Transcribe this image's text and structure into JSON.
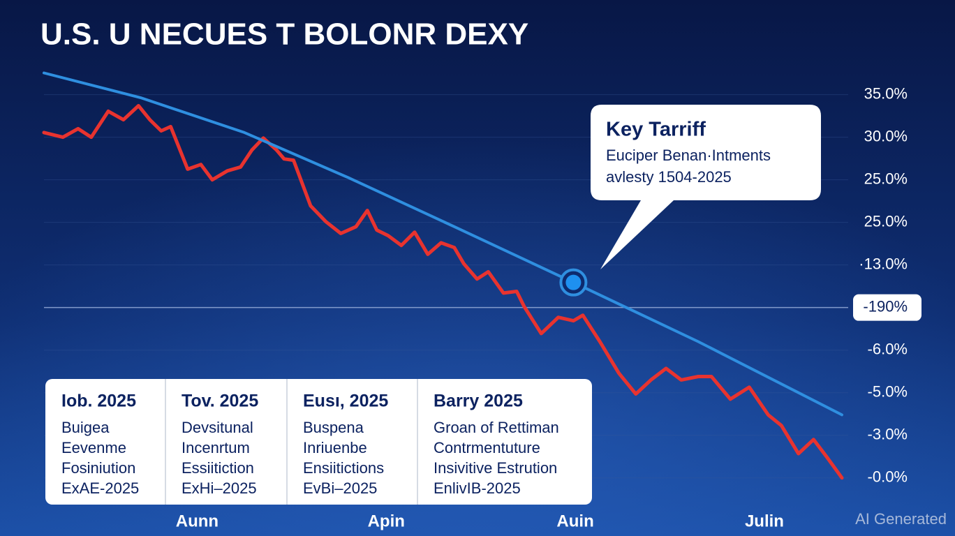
{
  "chart_data": {
    "type": "line",
    "title": "U.S. U NECUES T BOLONR DEXY",
    "xlim": [
      0.19,
      4.41
    ],
    "xticks": [
      {
        "value": 1,
        "label": "Aunn"
      },
      {
        "value": 2,
        "label": "Apin"
      },
      {
        "value": 3,
        "label": "Auin"
      },
      {
        "value": 4,
        "label": "Julin"
      }
    ],
    "ylim": [
      -0.25,
      9.6
    ],
    "yticks": [
      9,
      8,
      7,
      6,
      5,
      4,
      3,
      2,
      1,
      0
    ],
    "ytick_labels": [
      "35.0%",
      "30.0%",
      "25.0%",
      "25.0%",
      "·13.0%",
      "-190%",
      "-6.0%",
      "-5.0%",
      "-3.0%",
      "-0.0%"
    ],
    "highlighted_ytick": 5,
    "grid": true,
    "series": [
      {
        "color": "#e8332f",
        "x": [
          0.19,
          0.29,
          0.37,
          0.44,
          0.53,
          0.61,
          0.69,
          0.75,
          0.81,
          0.86,
          0.95,
          1.02,
          1.08,
          1.16,
          1.23,
          1.29,
          1.35,
          1.42,
          1.46,
          1.51,
          1.6,
          1.68,
          1.76,
          1.84,
          1.9,
          1.95,
          2.01,
          2.08,
          2.15,
          2.22,
          2.29,
          2.36,
          2.41,
          2.48,
          2.54,
          2.62,
          2.69,
          2.73,
          2.82,
          2.91,
          2.99,
          3.04,
          3.13,
          3.23,
          3.32,
          3.4,
          3.48,
          3.56,
          3.65,
          3.72,
          3.82,
          3.92,
          4.02,
          4.09,
          4.18,
          4.26,
          4.33,
          4.41
        ],
        "values": [
          8.11,
          8.0,
          8.2,
          8.0,
          8.61,
          8.41,
          8.74,
          8.41,
          8.15,
          8.25,
          7.25,
          7.36,
          7.0,
          7.21,
          7.3,
          7.7,
          7.98,
          7.7,
          7.49,
          7.46,
          6.39,
          6.02,
          5.74,
          5.9,
          6.28,
          5.82,
          5.69,
          5.46,
          5.77,
          5.25,
          5.52,
          5.41,
          5.03,
          4.67,
          4.84,
          4.34,
          4.38,
          4.02,
          3.39,
          3.77,
          3.69,
          3.82,
          3.2,
          2.46,
          1.97,
          2.3,
          2.57,
          2.3,
          2.38,
          2.38,
          1.85,
          2.13,
          1.48,
          1.23,
          0.57,
          0.9,
          0.49,
          0
        ]
      },
      {
        "color": "#2f8fe0",
        "x": [
          0.19,
          0.7,
          1.25,
          1.8,
          2.36,
          2.99,
          3.65,
          4.41
        ],
        "values": [
          9.51,
          8.93,
          8.11,
          7.05,
          5.9,
          4.59,
          3.2,
          1.48
        ]
      }
    ],
    "highlight_point": {
      "x": 2.99,
      "y": 4.59
    },
    "callout": {
      "title": "Key Tarriff",
      "lines": [
        "Euciper Benan·Intments",
        "avlesty 1504-2025"
      ]
    },
    "panel": {
      "columns": [
        {
          "heading": "Iob. 2025",
          "lines": [
            "Buigea",
            "Eevenme",
            "Fosiniution",
            "ExAE-2025"
          ]
        },
        {
          "heading": "Tov. 2025",
          "lines": [
            "Devsitunal",
            "Incenrtum",
            "Essiitiction",
            "ExHi–2025"
          ]
        },
        {
          "heading": "Eusı, 2025",
          "lines": [
            "Buspena",
            "Inriuenbe",
            "Ensiitictions",
            "EvBi–2025"
          ]
        },
        {
          "heading": "Barry 2025",
          "lines": [
            "Groan of Rettiman",
            "Contrmentuture",
            "Insivitive Estrution",
            "EnlivIB-2025"
          ]
        }
      ]
    },
    "watermark": "AI Generated"
  }
}
